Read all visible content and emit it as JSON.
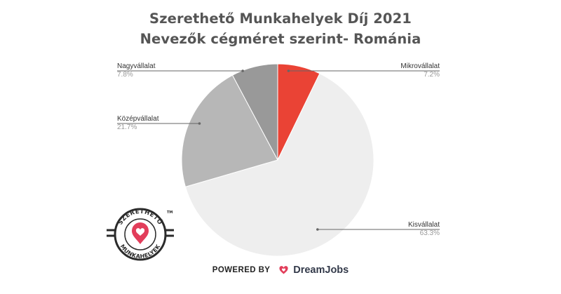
{
  "title_line1": "Szerethető Munkahelyek Díj 2021",
  "title_line2": "Nevezők cégméret szerint- Románia",
  "chart_data": {
    "type": "pie",
    "title": "Szerethető Munkahelyek Díj 2021 Nevezők cégméret szerint- Románia",
    "slices": [
      {
        "label": "Mikrovállalat",
        "pct_label": "7.2%",
        "value": 7.2,
        "color": "#ea4335"
      },
      {
        "label": "Kisvállalat",
        "pct_label": "63.3%",
        "value": 63.3,
        "color": "#eeeeee"
      },
      {
        "label": "Középvállalat",
        "pct_label": "21.7%",
        "value": 21.7,
        "color": "#b7b7b7"
      },
      {
        "label": "Nagyvállalat",
        "pct_label": "7.8%",
        "value": 7.8,
        "color": "#999999"
      }
    ],
    "start": "top",
    "direction": "clockwise"
  },
  "logo": {
    "top_text": "SZERETHETŐ",
    "bottom_text": "MUNKAHELYEK",
    "tm": "TM"
  },
  "footer": {
    "powered_by": "POWERED BY",
    "brand": "DreamJobs"
  }
}
